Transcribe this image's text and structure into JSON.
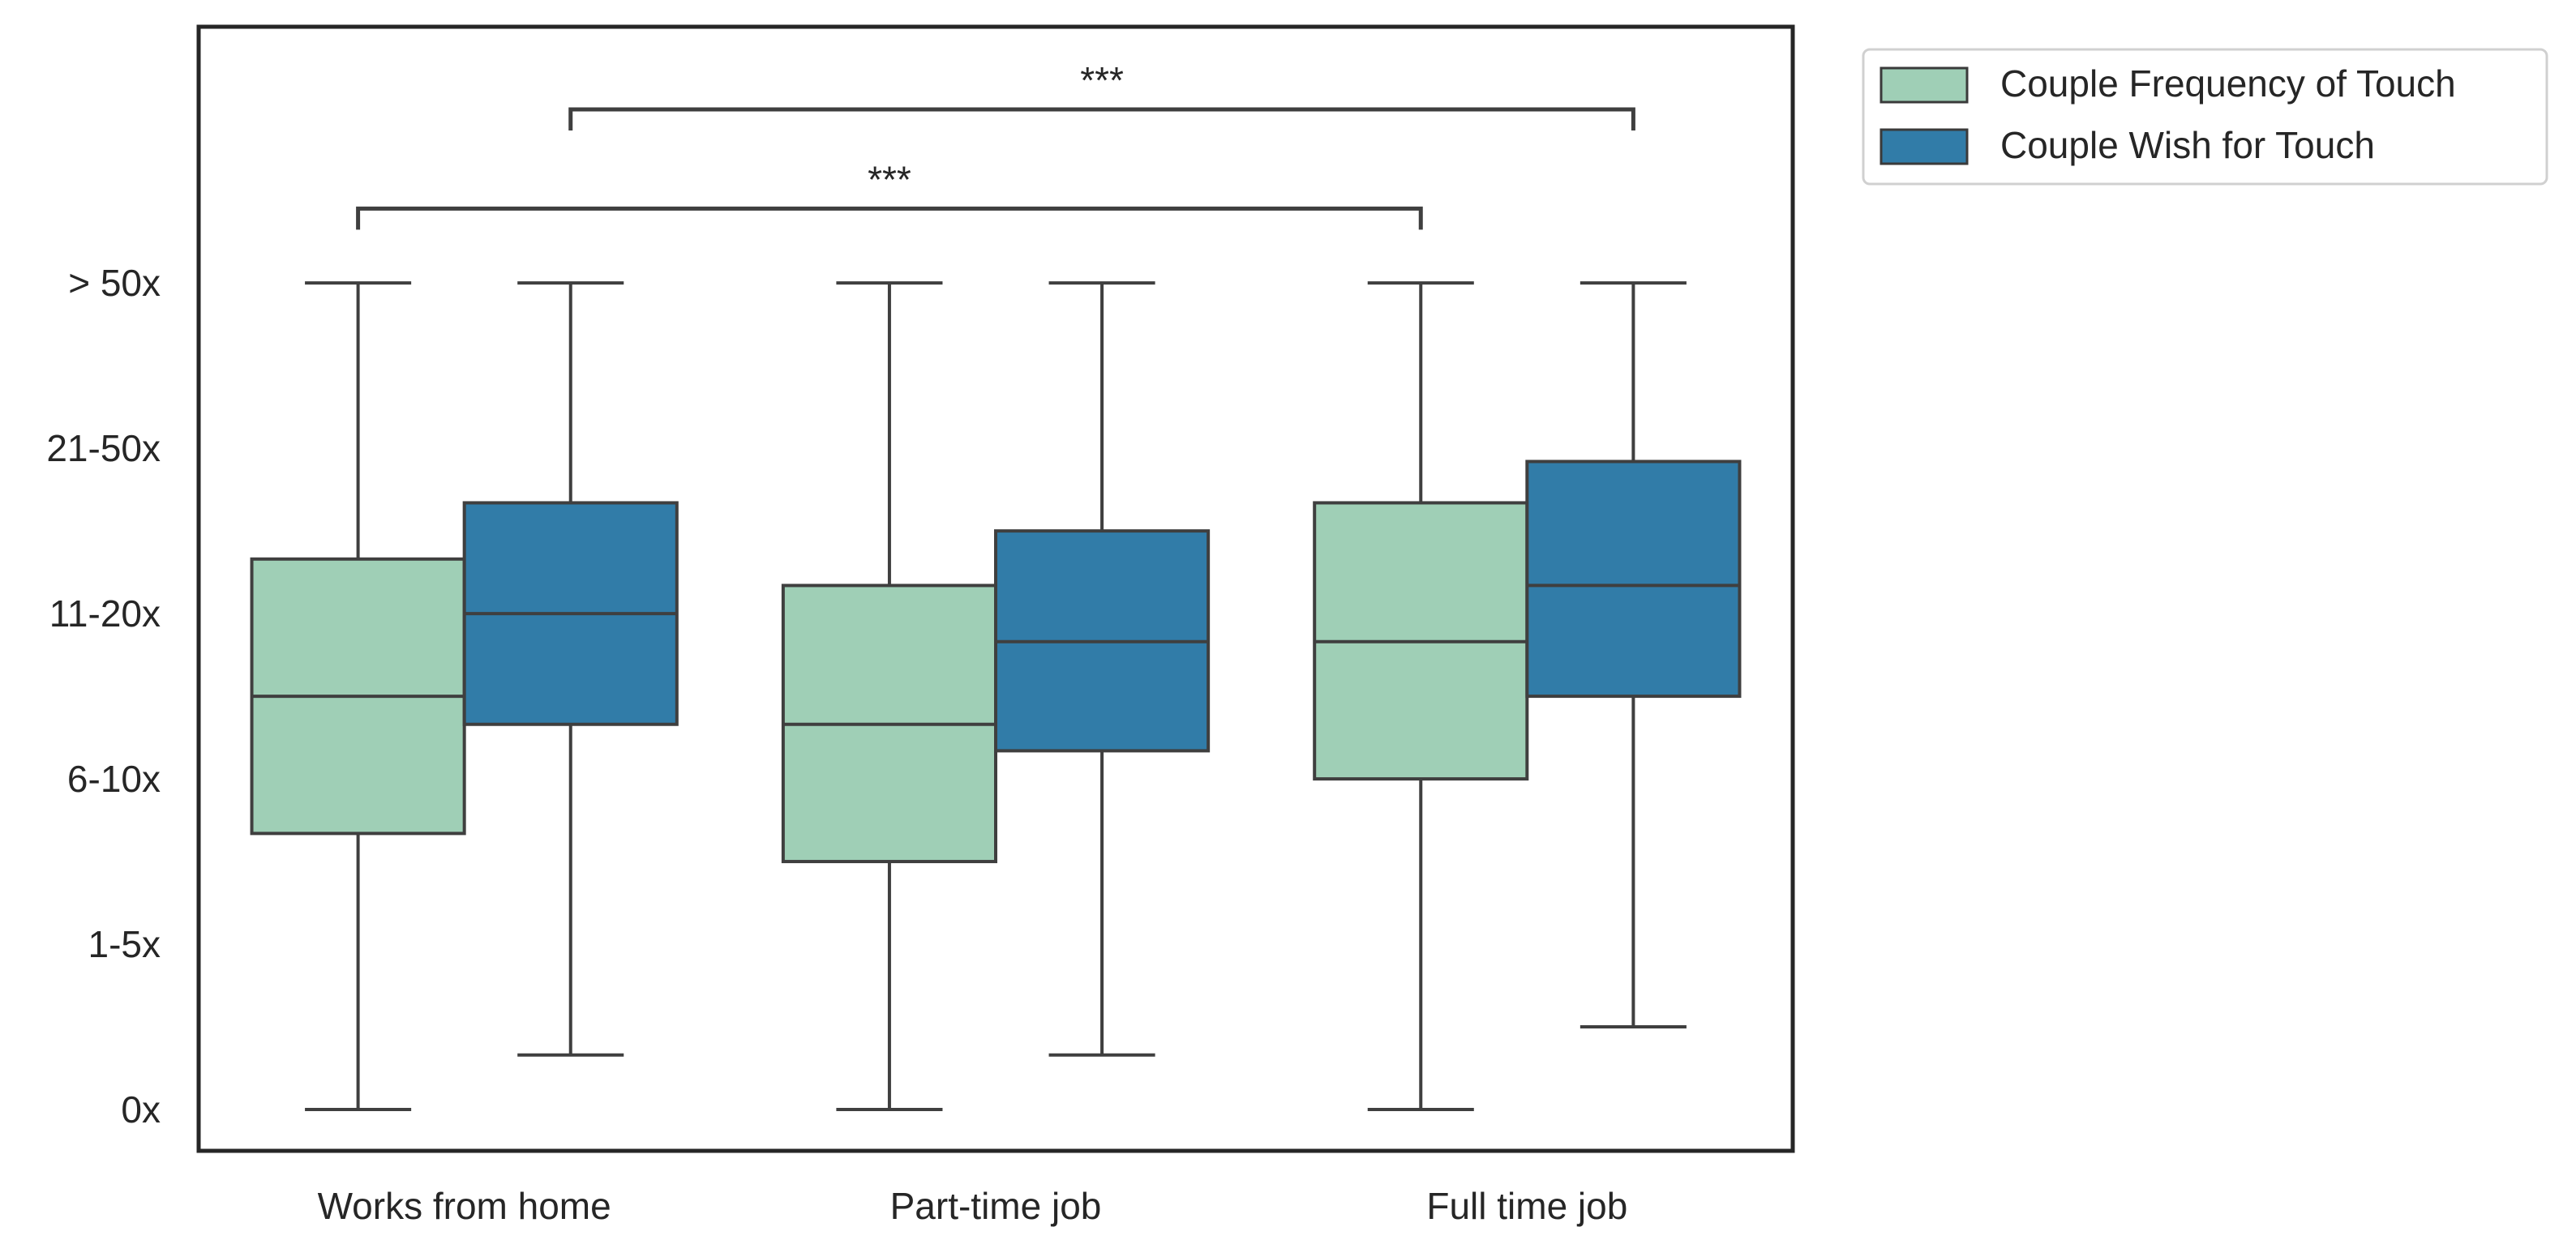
{
  "chart_data": {
    "type": "box",
    "y_tick_labels": [
      "0x",
      "1-5x",
      "6-10x",
      "11-20x",
      "21-50x",
      "> 50x"
    ],
    "y_tick_values": [
      0,
      1,
      2,
      3,
      4,
      5
    ],
    "ylim": [
      -0.25,
      6.55
    ],
    "categories": [
      "Works from home",
      "Part-time job",
      "Full time job"
    ],
    "series": [
      {
        "name": "Couple Frequency of Touch",
        "color": "#9fcfb6",
        "boxes": [
          {
            "whislo": 0,
            "q1": 1.67,
            "med": 2.5,
            "q3": 3.33,
            "whishi": 5
          },
          {
            "whislo": 0,
            "q1": 1.5,
            "med": 2.33,
            "q3": 3.17,
            "whishi": 5
          },
          {
            "whislo": 0,
            "q1": 2.0,
            "med": 2.83,
            "q3": 3.67,
            "whishi": 5
          }
        ]
      },
      {
        "name": "Couple Wish for Touch",
        "color": "#317ca8",
        "boxes": [
          {
            "whislo": 0.33,
            "q1": 2.33,
            "med": 3.0,
            "q3": 3.67,
            "whishi": 5
          },
          {
            "whislo": 0.33,
            "q1": 2.17,
            "med": 2.83,
            "q3": 3.5,
            "whishi": 5
          },
          {
            "whislo": 0.5,
            "q1": 2.5,
            "med": 3.17,
            "q3": 3.92,
            "whishi": 5
          }
        ]
      }
    ],
    "significance": [
      {
        "from_category": 0,
        "from_series": 0,
        "to_category": 2,
        "to_series": 0,
        "label": "***",
        "level": 5.45
      },
      {
        "from_category": 0,
        "from_series": 1,
        "to_category": 2,
        "to_series": 1,
        "label": "***",
        "level": 6.05
      }
    ],
    "legend": {
      "position": "outside upper right"
    },
    "grid": false
  }
}
